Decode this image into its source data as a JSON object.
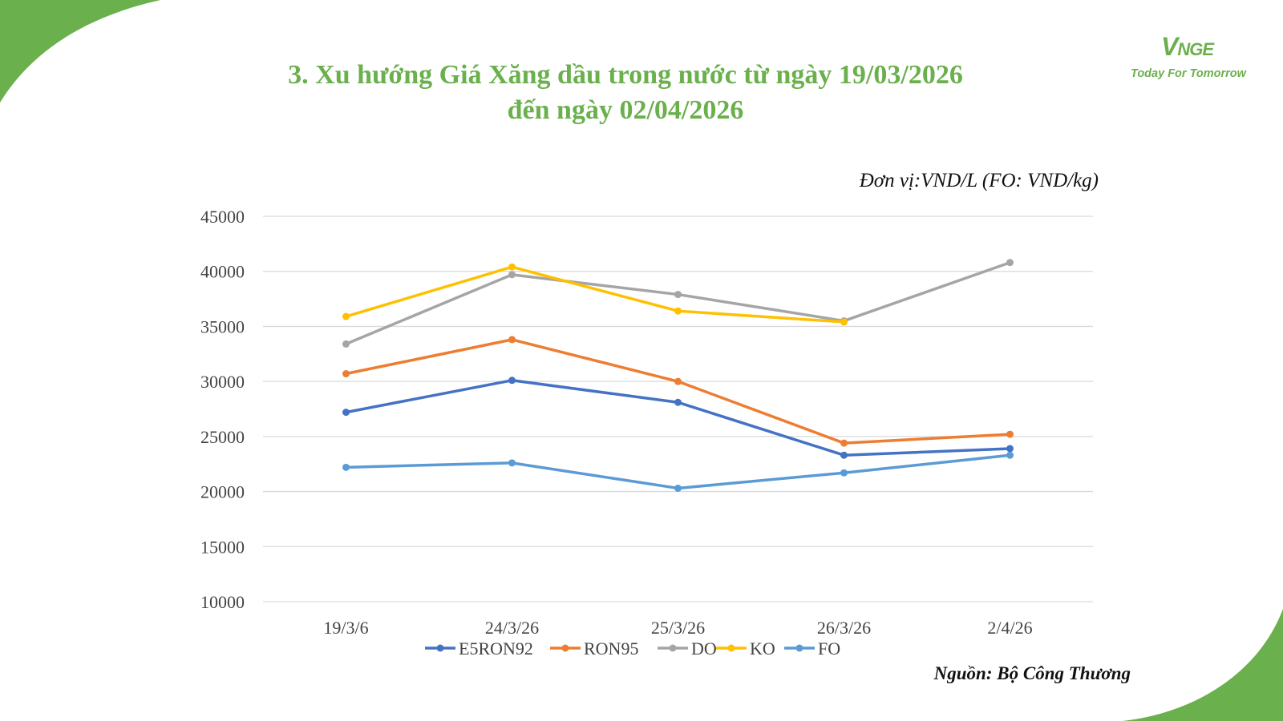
{
  "slide": {
    "title_line1": "3. Xu hướng Giá Xăng dầu trong nước từ ngày 19/03/2026",
    "title_line2": "đến ngày 02/04/2026",
    "unit_note": "Đơn vị:VND/L (FO: VND/kg)",
    "source": "Nguồn: Bộ Công Thương",
    "logo_letters": "VNGE",
    "logo_tagline": "Today For Tomorrow",
    "brand_color": "#6ab04c"
  },
  "chart_data": {
    "type": "line",
    "categories": [
      "19/3/6",
      "24/3/26",
      "25/3/26",
      "26/3/26",
      "2/4/26"
    ],
    "ylim": [
      10000,
      45000
    ],
    "yticks": [
      "45000",
      "40000",
      "35000",
      "30000",
      "25000",
      "20000",
      "15000",
      "10000"
    ],
    "grid": true,
    "legend_position": "bottom",
    "series": [
      {
        "name": "E5RON92",
        "color": "#4472c4",
        "values": [
          27200,
          30100,
          28100,
          23300,
          23900
        ]
      },
      {
        "name": "RON95",
        "color": "#ed7d31",
        "values": [
          30700,
          33800,
          30000,
          24400,
          25200
        ]
      },
      {
        "name": "DO",
        "color": "#a5a5a5",
        "values": [
          33400,
          39700,
          37900,
          35500,
          40800
        ]
      },
      {
        "name": "KO",
        "color": "#ffc000",
        "values": [
          35900,
          40400,
          36400,
          35400,
          null
        ]
      },
      {
        "name": "FO",
        "color": "#5b9bd5",
        "values": [
          22200,
          22600,
          20300,
          21700,
          23300
        ]
      }
    ]
  }
}
